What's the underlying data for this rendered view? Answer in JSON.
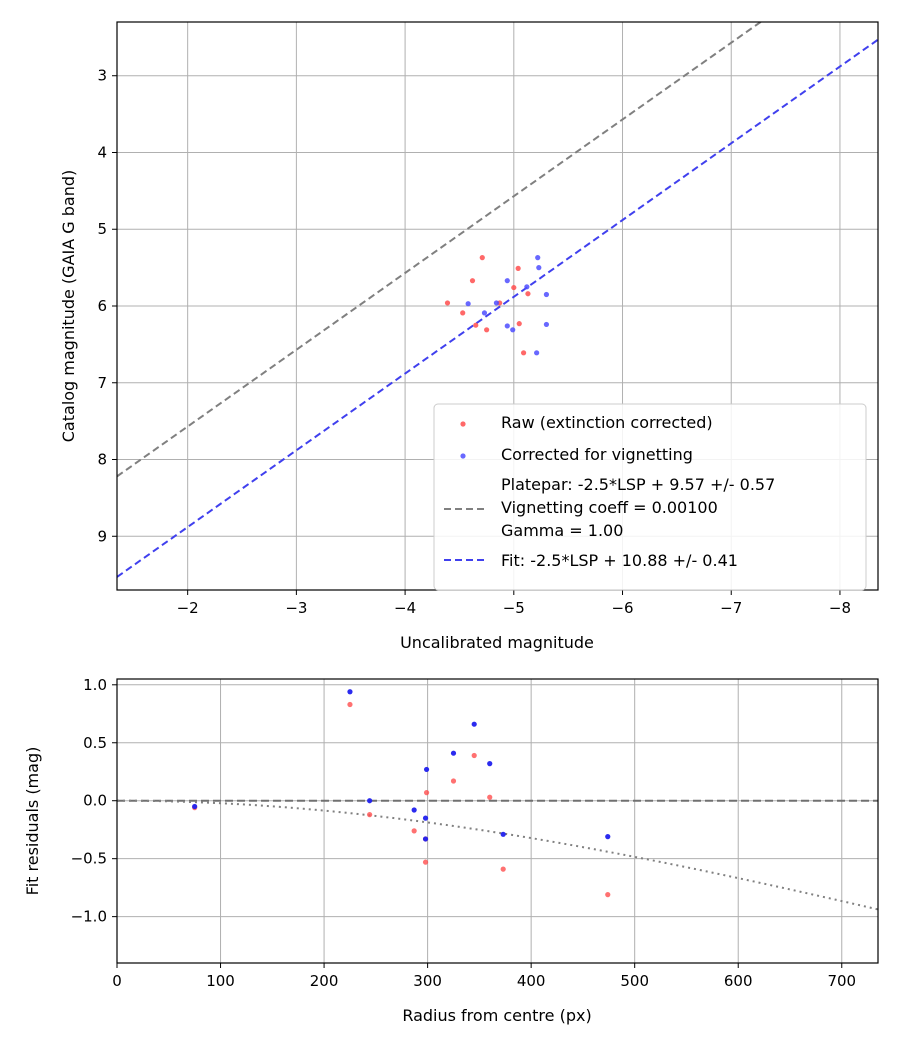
{
  "chart_data": [
    {
      "type": "scatter",
      "title": "",
      "xlabel": "Uncalibrated magnitude",
      "ylabel": "Catalog magnitude (GAIA G band)",
      "xlim": [
        -1.35,
        -8.35
      ],
      "ylim": [
        9.7,
        2.3
      ],
      "x_inverted": true,
      "y_inverted": true,
      "grid": true,
      "xticks": [
        -2,
        -3,
        -4,
        -5,
        -6,
        -7,
        -8
      ],
      "xtick_labels": [
        "−2",
        "−3",
        "−4",
        "−5",
        "−6",
        "−7",
        "−8"
      ],
      "yticks": [
        3,
        4,
        5,
        6,
        7,
        8,
        9
      ],
      "ytick_labels": [
        "3",
        "4",
        "5",
        "6",
        "7",
        "8",
        "9"
      ],
      "legend_position": "bottom-right",
      "legend": [
        {
          "label": "Raw (extinction corrected)",
          "kind": "marker",
          "color": "#ff4d4d"
        },
        {
          "label": "Corrected for vignetting",
          "kind": "marker",
          "color": "#4d4dff"
        },
        {
          "label_lines": [
            "Platepar: -2.5*LSP + 9.57 +/- 0.57",
            "Vignetting coeff = 0.00100",
            "Gamma = 1.00"
          ],
          "kind": "dashed",
          "color": "#808080"
        },
        {
          "label": "Fit: -2.5*LSP + 10.88 +/- 0.41",
          "kind": "dashed",
          "color": "#4040ee"
        }
      ],
      "lines": [
        {
          "name": "Platepar",
          "slope": 1.0,
          "intercept": 9.57,
          "color": "#808080",
          "style": "dashed"
        },
        {
          "name": "Fit",
          "slope": 1.0,
          "intercept": 10.88,
          "color": "#4040ee",
          "style": "dashed"
        }
      ],
      "series": [
        {
          "name": "Raw (extinction corrected)",
          "color": "#ff4d4d",
          "points": [
            [
              -4.39,
              5.96
            ],
            [
              -4.53,
              6.09
            ],
            [
              -4.65,
              6.25
            ],
            [
              -4.75,
              6.31
            ],
            [
              -4.71,
              5.37
            ],
            [
              -4.62,
              5.67
            ],
            [
              -4.87,
              5.96
            ],
            [
              -5.0,
              5.76
            ],
            [
              -5.04,
              5.51
            ],
            [
              -5.05,
              6.23
            ],
            [
              -5.09,
              6.61
            ],
            [
              -5.13,
              5.84
            ]
          ]
        },
        {
          "name": "Corrected for vignetting",
          "color": "#4d4dff",
          "points": [
            [
              -4.58,
              5.97
            ],
            [
              -4.73,
              6.09
            ],
            [
              -4.84,
              5.96
            ],
            [
              -4.94,
              6.26
            ],
            [
              -4.94,
              5.67
            ],
            [
              -4.99,
              6.31
            ],
            [
              -5.12,
              5.75
            ],
            [
              -5.21,
              6.61
            ],
            [
              -5.22,
              5.37
            ],
            [
              -5.23,
              5.5
            ],
            [
              -5.3,
              6.24
            ],
            [
              -5.3,
              5.85
            ]
          ]
        }
      ]
    },
    {
      "type": "scatter",
      "title": "",
      "xlabel": "Radius from centre (px)",
      "ylabel": "Fit residuals (mag)",
      "xlim": [
        0,
        735
      ],
      "ylim": [
        -1.4,
        1.05
      ],
      "grid": true,
      "xticks": [
        0,
        100,
        200,
        300,
        400,
        500,
        600,
        700
      ],
      "xtick_labels": [
        "0",
        "100",
        "200",
        "300",
        "400",
        "500",
        "600",
        "700"
      ],
      "yticks": [
        1.0,
        0.5,
        0.0,
        -0.5,
        -1.0
      ],
      "ytick_labels": [
        "1.0",
        "0.5",
        "0.0",
        "−0.5",
        "−1.0"
      ],
      "zero_line": {
        "y": 0.0,
        "color": "#707070",
        "style": "dashed"
      },
      "vignetting_curve": {
        "coeff": 0.001,
        "color": "#808080",
        "style": "dotted"
      },
      "series": [
        {
          "name": "Raw (extinction corrected)",
          "color": "#ff4d4d",
          "points": [
            [
              75,
              -0.06
            ],
            [
              225,
              0.83
            ],
            [
              244,
              -0.12
            ],
            [
              287,
              -0.26
            ],
            [
              298,
              -0.33
            ],
            [
              298,
              -0.53
            ],
            [
              299,
              0.07
            ],
            [
              325,
              0.17
            ],
            [
              345,
              0.39
            ],
            [
              360,
              0.03
            ],
            [
              373,
              -0.59
            ],
            [
              474,
              -0.81
            ]
          ]
        },
        {
          "name": "Corrected for vignetting",
          "color": "#2020ee",
          "points": [
            [
              75,
              -0.05
            ],
            [
              225,
              0.94
            ],
            [
              244,
              0.0
            ],
            [
              287,
              -0.08
            ],
            [
              298,
              -0.15
            ],
            [
              298,
              -0.33
            ],
            [
              299,
              0.27
            ],
            [
              325,
              0.41
            ],
            [
              345,
              0.66
            ],
            [
              360,
              0.32
            ],
            [
              373,
              -0.29
            ],
            [
              474,
              -0.31
            ]
          ]
        }
      ]
    }
  ]
}
